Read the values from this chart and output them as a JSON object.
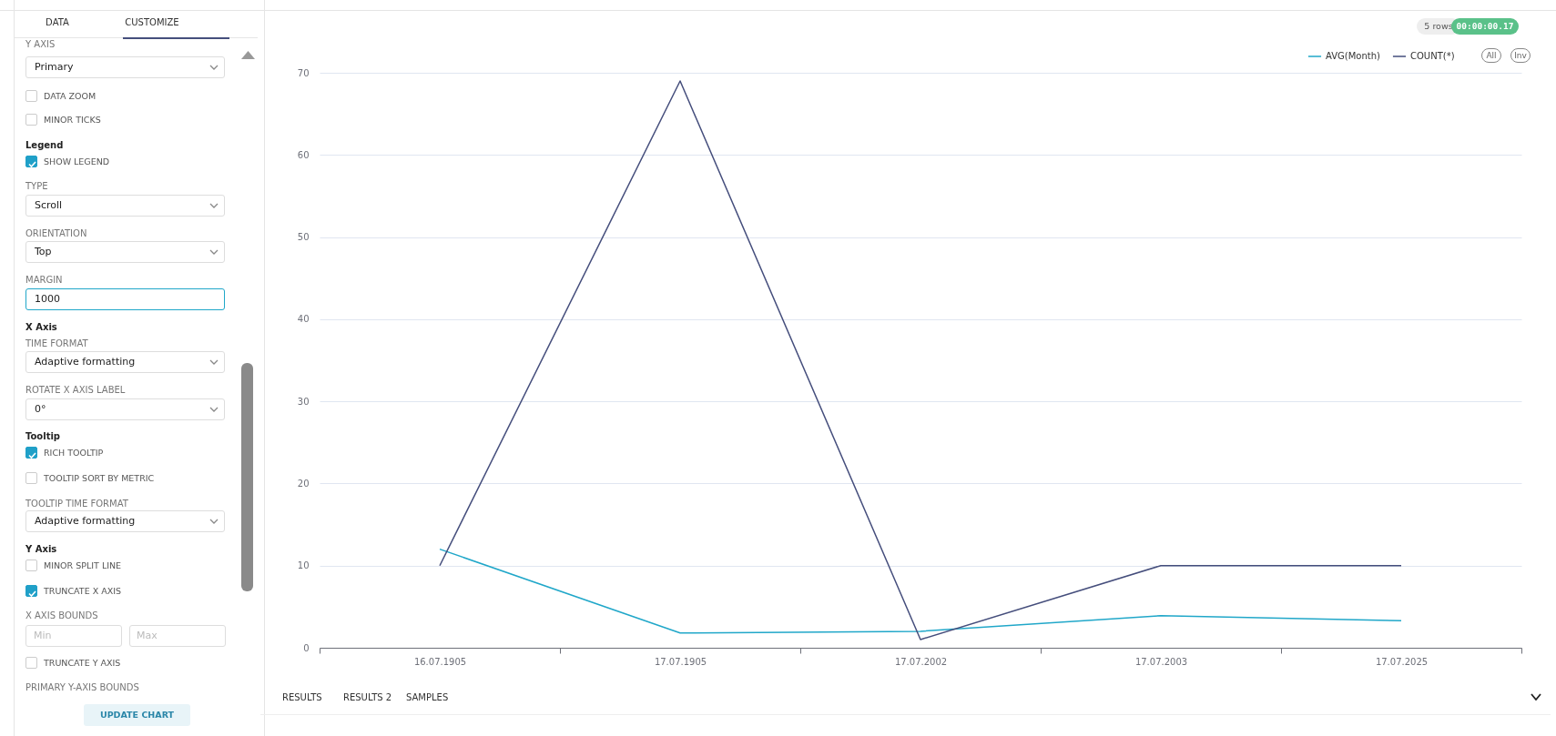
{
  "chart_data": [
    {
      "type": "other",
      "annotations": [
        "DATA",
        "CUSTOMIZE",
        "Y AXIS",
        "Primary",
        "DATA ZOOM",
        "MINOR TICKS",
        "Legend",
        "SHOW LEGEND",
        "TYPE",
        "Scroll",
        "ORIENTATION",
        "Top",
        "MARGIN",
        "1000",
        "X Axis",
        "TIME FORMAT",
        "Adaptive formatting",
        "ROTATE X AXIS LABEL",
        "0°",
        "Tooltip",
        "RICH TOOLTIP",
        "TOOLTIP SORT BY METRIC",
        "TOOLTIP TIME FORMAT",
        "Adaptive formatting",
        "Y Axis",
        "MINOR SPLIT LINE",
        "TRUNCATE X AXIS",
        "X AXIS BOUNDS",
        "Min",
        "Max",
        "TRUNCATE Y AXIS",
        "PRIMARY Y-AXIS BOUNDS",
        "UPDATE CHART"
      ]
    },
    {
      "type": "line",
      "categories": [
        "16.07.1905",
        "17.07.1905",
        "17.07.2002",
        "17.07.2003",
        "17.07.2025"
      ],
      "series": [
        {
          "name": "AVG(Month)",
          "color": "#20a7c9",
          "values": [
            12,
            1.8,
            2,
            3.9,
            3.3
          ]
        },
        {
          "name": "COUNT(*)",
          "color": "#454e7c",
          "values": [
            10,
            69,
            1,
            10,
            10
          ]
        }
      ],
      "ylim": [
        0,
        70
      ],
      "yticks": [
        0,
        10,
        20,
        30,
        40,
        50,
        60,
        70
      ],
      "grid": "y",
      "legend": "top right",
      "annotations": [
        "5 rows",
        "00:00:00.17",
        "All",
        "Inv",
        "RESULTS",
        "RESULTS 2",
        "SAMPLES"
      ]
    }
  ]
}
